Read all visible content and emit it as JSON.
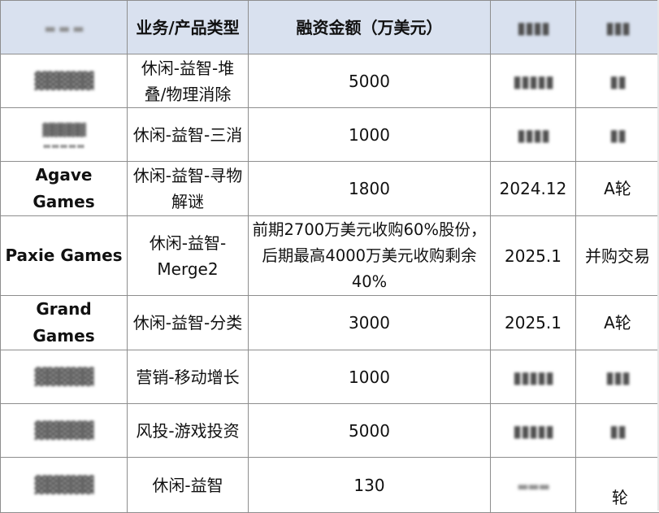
{
  "table": {
    "headers": {
      "company": "",
      "type": "业务/产品类型",
      "amount": "融资金额（万美元）",
      "date": "",
      "round": ""
    },
    "rows": [
      {
        "company": "",
        "type": "休闲-益智-堆叠/物理消除",
        "amount": "5000",
        "date": "",
        "round": ""
      },
      {
        "company": "",
        "type": "休闲-益智-三消",
        "amount": "1000",
        "date": "",
        "round": ""
      },
      {
        "company": "Agave Games",
        "type": "休闲-益智-寻物解谜",
        "amount": "1800",
        "date": "2024.12",
        "round": "A轮"
      },
      {
        "company": "Paxie Games",
        "type": "休闲-益智-Merge2",
        "amount": "前期2700万美元收购60%股份，后期最高4000万美元收购剩余40%",
        "date": "2025.1",
        "round": "并购交易"
      },
      {
        "company": "Grand Games",
        "type": "休闲-益智-分类",
        "amount": "3000",
        "date": "2025.1",
        "round": "A轮"
      },
      {
        "company": "",
        "type": "营销-移动增长",
        "amount": "1000",
        "date": "",
        "round": ""
      },
      {
        "company": "",
        "type": "风投-游戏投资",
        "amount": "5000",
        "date": "",
        "round": ""
      },
      {
        "company": "",
        "type": "休闲-益智",
        "amount": "130",
        "date": "",
        "round": "轮"
      }
    ]
  },
  "colors": {
    "header_bg": "#d9e1ef",
    "border": "#8e8e8e",
    "text": "#111111"
  }
}
